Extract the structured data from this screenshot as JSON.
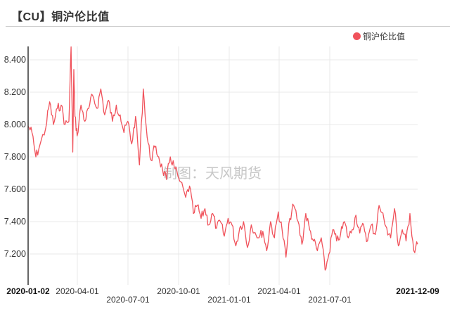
{
  "header": {
    "title": "【CU】铜沪伦比值"
  },
  "legend": {
    "label": "铜沪伦比值",
    "color": "#f0525b"
  },
  "watermark": "制图：天风期货",
  "chart_data": {
    "type": "line",
    "title": "【CU】铜沪伦比值",
    "xlabel": "",
    "ylabel": "",
    "ylim": [
      7.03,
      8.48
    ],
    "grid": true,
    "legend_position": "top-right",
    "y_ticks": [
      "8.400",
      "8.200",
      "8.000",
      "7.800",
      "7.600",
      "7.400",
      "7.200"
    ],
    "x_ticks": [
      "2020-01-02",
      "2020-04-01",
      "2020-07-01",
      "2020-10-01",
      "2021-01-01",
      "2021-04-01",
      "2021-07-01",
      "2021-12-09"
    ],
    "series": [
      {
        "name": "铜沪伦比值",
        "color": "#f0525b",
        "x": [
          "2020-01-02",
          "2020-01-09",
          "2020-01-16",
          "2020-01-23",
          "2020-02-03",
          "2020-02-10",
          "2020-02-17",
          "2020-02-24",
          "2020-03-02",
          "2020-03-09",
          "2020-03-16",
          "2020-03-20",
          "2020-03-23",
          "2020-03-25",
          "2020-03-27",
          "2020-03-31",
          "2020-04-07",
          "2020-04-14",
          "2020-04-21",
          "2020-04-28",
          "2020-05-06",
          "2020-05-13",
          "2020-05-20",
          "2020-05-27",
          "2020-06-03",
          "2020-06-10",
          "2020-06-17",
          "2020-06-24",
          "2020-07-01",
          "2020-07-08",
          "2020-07-15",
          "2020-07-22",
          "2020-07-29",
          "2020-08-05",
          "2020-08-12",
          "2020-08-19",
          "2020-08-26",
          "2020-09-02",
          "2020-09-09",
          "2020-09-16",
          "2020-09-23",
          "2020-09-30",
          "2020-10-14",
          "2020-10-21",
          "2020-10-28",
          "2020-11-04",
          "2020-11-11",
          "2020-11-18",
          "2020-11-25",
          "2020-12-02",
          "2020-12-09",
          "2020-12-16",
          "2020-12-23",
          "2020-12-30",
          "2021-01-06",
          "2021-01-13",
          "2021-01-20",
          "2021-01-27",
          "2021-02-03",
          "2021-02-10",
          "2021-02-24",
          "2021-03-03",
          "2021-03-10",
          "2021-03-17",
          "2021-03-24",
          "2021-03-31",
          "2021-04-07",
          "2021-04-14",
          "2021-04-21",
          "2021-04-28",
          "2021-05-06",
          "2021-05-13",
          "2021-05-20",
          "2021-05-27",
          "2021-06-03",
          "2021-06-10",
          "2021-06-17",
          "2021-06-24",
          "2021-07-01",
          "2021-07-08",
          "2021-07-15",
          "2021-07-22",
          "2021-07-29",
          "2021-08-05",
          "2021-08-12",
          "2021-08-19",
          "2021-08-26",
          "2021-09-02",
          "2021-09-09",
          "2021-09-16",
          "2021-09-23",
          "2021-09-30",
          "2021-10-14",
          "2021-10-21",
          "2021-10-28",
          "2021-11-04",
          "2021-11-11",
          "2021-11-18",
          "2021-11-25",
          "2021-12-02",
          "2021-12-09"
        ],
        "values": [
          7.99,
          7.95,
          7.8,
          7.87,
          7.98,
          8.14,
          8.0,
          8.1,
          8.12,
          8.0,
          8.02,
          8.48,
          7.83,
          8.34,
          8.05,
          7.93,
          8.12,
          8.02,
          8.1,
          8.18,
          8.1,
          8.22,
          8.06,
          8.15,
          8.02,
          8.12,
          8.06,
          7.95,
          8.02,
          7.88,
          8.05,
          7.75,
          8.22,
          7.92,
          7.78,
          7.86,
          7.8,
          7.72,
          7.66,
          7.8,
          7.74,
          7.68,
          7.55,
          7.62,
          7.45,
          7.5,
          7.42,
          7.48,
          7.38,
          7.45,
          7.36,
          7.4,
          7.31,
          7.42,
          7.38,
          7.25,
          7.36,
          7.4,
          7.24,
          7.38,
          7.3,
          7.34,
          7.22,
          7.4,
          7.3,
          7.46,
          7.35,
          7.18,
          7.42,
          7.5,
          7.4,
          7.26,
          7.45,
          7.35,
          7.28,
          7.22,
          7.3,
          7.1,
          7.2,
          7.35,
          7.28,
          7.32,
          7.4,
          7.3,
          7.35,
          7.44,
          7.33,
          7.38,
          7.28,
          7.38,
          7.32,
          7.5,
          7.36,
          7.3,
          7.48,
          7.25,
          7.35,
          7.28,
          7.45,
          7.22,
          7.26
        ]
      }
    ]
  }
}
